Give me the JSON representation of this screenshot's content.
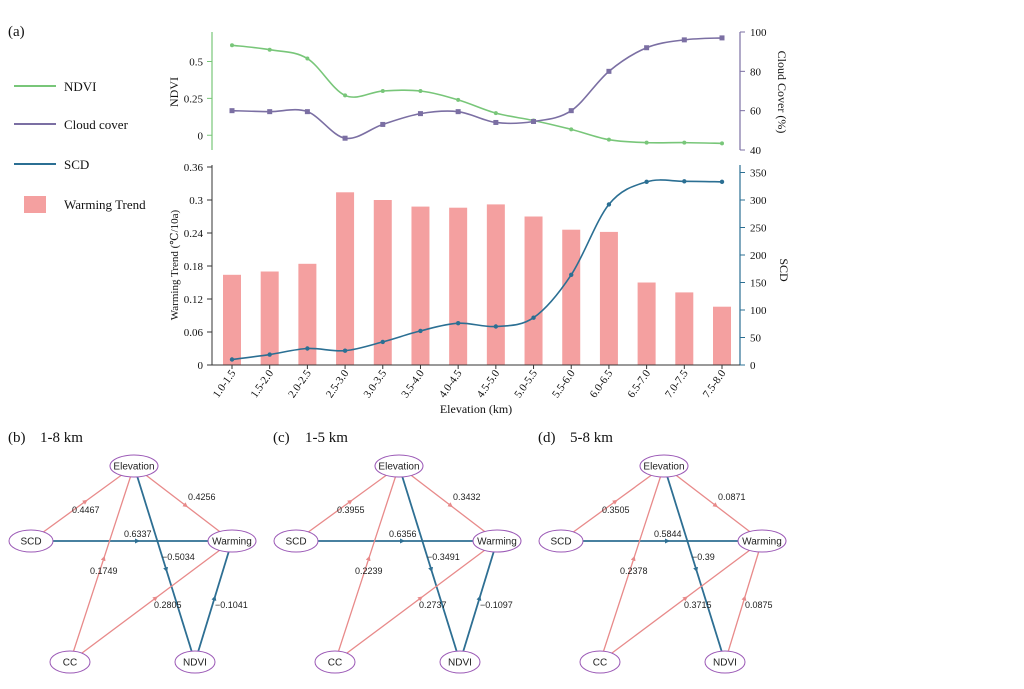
{
  "panel_labels": {
    "a": "(a)",
    "b": "(b)",
    "c": "(c)",
    "d": "(d)"
  },
  "colors": {
    "ndvi": "#78c679",
    "cloud": "#7b6fa3",
    "scd": "#2b6f93",
    "warming": "#f4a0a0",
    "node_border": "#9b59b6",
    "path_pos": "#e88a8a",
    "path_neg": "#2e6f93"
  },
  "legend": {
    "items": [
      {
        "label": "NDVI",
        "color": "#78c679",
        "kind": "line"
      },
      {
        "label": "Cloud cover",
        "color": "#7b6fa3",
        "kind": "line"
      },
      {
        "label": "SCD",
        "color": "#2b6f93",
        "kind": "line"
      },
      {
        "label": "Warming Trend",
        "color": "#f4a0a0",
        "kind": "bar"
      }
    ]
  },
  "chart_data": [
    {
      "type": "line",
      "panel": "(a) top",
      "categories": [
        "1.0-1.5",
        "1.5-2.0",
        "2.0-2.5",
        "2.5-3.0",
        "3.0-3.5",
        "3.5-4.0",
        "4.0-4.5",
        "4.5-5.0",
        "5.0-5.5",
        "5.5-6.0",
        "6.0-6.5",
        "6.5-7.0",
        "7.0-7.5",
        "7.5-8.0"
      ],
      "series": [
        {
          "name": "NDVI",
          "axis": "left",
          "values": [
            0.61,
            0.58,
            0.52,
            0.27,
            0.3,
            0.3,
            0.24,
            0.15,
            0.1,
            0.04,
            -0.03,
            -0.05,
            -0.05,
            -0.055
          ]
        },
        {
          "name": "Cloud cover",
          "axis": "right",
          "values": [
            60,
            59.5,
            59.5,
            46,
            53,
            58.5,
            59.5,
            54,
            54.5,
            60,
            80,
            92,
            96,
            97
          ]
        }
      ],
      "ylabel_left": "NDVI",
      "ylabel_right": "Cloud Cover (%)",
      "ylim_left": [
        -0.1,
        0.7
      ],
      "ylim_right": [
        40,
        100
      ],
      "yticks_left": [
        "0",
        "0.25",
        "0.5"
      ],
      "yticks_right": [
        "40",
        "60",
        "80",
        "100"
      ]
    },
    {
      "type": "bar",
      "panel": "(a) bottom",
      "categories": [
        "1.0-1.5",
        "1.5-2.0",
        "2.0-2.5",
        "2.5-3.0",
        "3.0-3.5",
        "3.5-4.0",
        "4.0-4.5",
        "4.5-5.0",
        "5.0-5.5",
        "5.5-6.0",
        "6.0-6.5",
        "6.5-7.0",
        "7.0-7.5",
        "7.5-8.0"
      ],
      "series": [
        {
          "name": "Warming Trend",
          "axis": "left",
          "values": [
            0.164,
            0.17,
            0.184,
            0.314,
            0.3,
            0.288,
            0.286,
            0.292,
            0.27,
            0.246,
            0.242,
            0.15,
            0.132,
            0.106
          ]
        },
        {
          "name": "SCD",
          "axis": "right",
          "values": [
            10,
            19,
            30,
            26,
            42,
            62,
            76,
            70,
            86,
            164,
            292,
            333,
            334,
            333
          ]
        }
      ],
      "xlabel": "Elevation (km)",
      "ylabel_left": "Warming Trend (℃/10a)",
      "ylabel_right": "SCD",
      "ylim_left": [
        0,
        0.36
      ],
      "ylim_right": [
        0,
        360
      ],
      "yticks_left": [
        "0",
        "0.06",
        "0.12",
        "0.18",
        "0.24",
        "0.3",
        "0.36"
      ],
      "yticks_right": [
        "0",
        "50",
        "100",
        "150",
        "200",
        "250",
        "300",
        "350"
      ]
    }
  ],
  "path_diagrams": [
    {
      "label": "(b)",
      "title": "1-8 km",
      "nodes": {
        "elevation": "Elevation",
        "scd": "SCD",
        "warming": "Warming",
        "cc": "CC",
        "ndvi": "NDVI"
      },
      "coefs": {
        "scd_elev": "0.4467",
        "elev_warm": "0.4256",
        "scd_warm": "0.6337",
        "elev_ndvi": "−0.5034",
        "elev_cc": "0.1749",
        "cc_warm": "0.2805",
        "ndvi_warm": "−0.1041"
      },
      "ndvi_warm_sign": "neg"
    },
    {
      "label": "(c)",
      "title": "1-5 km",
      "nodes": {
        "elevation": "Elevation",
        "scd": "SCD",
        "warming": "Warming",
        "cc": "CC",
        "ndvi": "NDVI"
      },
      "coefs": {
        "scd_elev": "0.3955",
        "elev_warm": "0.3432",
        "scd_warm": "0.6356",
        "elev_ndvi": "−0.3491",
        "elev_cc": "0.2239",
        "cc_warm": "0.2737",
        "ndvi_warm": "−0.1097"
      },
      "ndvi_warm_sign": "neg"
    },
    {
      "label": "(d)",
      "title": "5-8 km",
      "nodes": {
        "elevation": "Elevation",
        "scd": "SCD",
        "warming": "Warming",
        "cc": "CC",
        "ndvi": "NDVI"
      },
      "coefs": {
        "scd_elev": "0.3505",
        "elev_warm": "0.0871",
        "scd_warm": "0.5844",
        "elev_ndvi": "−0.39",
        "elev_cc": "0.2378",
        "cc_warm": "0.3715",
        "ndvi_warm": "0.0875"
      },
      "ndvi_warm_sign": "pos"
    }
  ]
}
